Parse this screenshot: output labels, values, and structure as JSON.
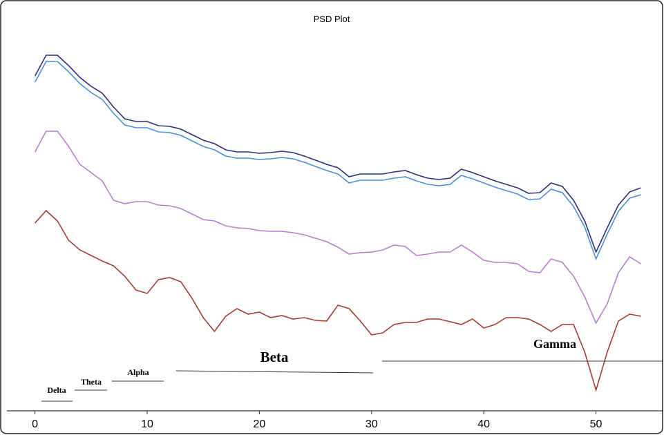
{
  "chart_data": {
    "type": "line",
    "title": "PSD Plot",
    "x": [
      0,
      1,
      2,
      3,
      4,
      5,
      6,
      7,
      8,
      9,
      10,
      11,
      12,
      13,
      14,
      15,
      16,
      17,
      18,
      19,
      20,
      21,
      22,
      23,
      24,
      25,
      26,
      27,
      28,
      29,
      30,
      31,
      32,
      33,
      34,
      35,
      36,
      37,
      38,
      39,
      40,
      41,
      42,
      43,
      44,
      45,
      46,
      47,
      48,
      49,
      50,
      51,
      52,
      53,
      54
    ],
    "series": [
      {
        "color": "#2b2f7a",
        "values": [
          485,
          515,
          515,
          500,
          483,
          470,
          460,
          440,
          423,
          419,
          419,
          413,
          412,
          408,
          400,
          392,
          387,
          378,
          375,
          375,
          373,
          374,
          376,
          374,
          369,
          363,
          357,
          352,
          339,
          343,
          343,
          343,
          346,
          348,
          342,
          337,
          335,
          337,
          350,
          345,
          339,
          333,
          328,
          323,
          315,
          316,
          330,
          325,
          305,
          275,
          230,
          265,
          298,
          317,
          323
        ]
      },
      {
        "color": "#4a8fd6",
        "values": [
          476,
          506,
          506,
          491,
          474,
          461,
          451,
          431,
          414,
          410,
          410,
          404,
          403,
          399,
          391,
          383,
          378,
          369,
          366,
          366,
          364,
          365,
          367,
          365,
          360,
          354,
          348,
          343,
          330,
          334,
          334,
          334,
          337,
          339,
          333,
          328,
          326,
          328,
          341,
          336,
          330,
          324,
          319,
          314,
          306,
          307,
          321,
          316,
          296,
          266,
          220,
          256,
          289,
          308,
          313
        ]
      },
      {
        "color": "#b77fd0",
        "values": [
          375,
          405,
          405,
          383,
          357,
          345,
          333,
          305,
          300,
          303,
          303,
          298,
          297,
          293,
          285,
          277,
          275,
          268,
          265,
          264,
          261,
          260,
          260,
          258,
          255,
          250,
          245,
          237,
          227,
          229,
          230,
          233,
          240,
          238,
          225,
          227,
          230,
          230,
          240,
          230,
          218,
          215,
          215,
          213,
          202,
          200,
          220,
          215,
          195,
          165,
          127,
          155,
          200,
          223,
          213
        ]
      },
      {
        "color": "#a83a32",
        "values": [
          272,
          290,
          275,
          247,
          233,
          225,
          217,
          210,
          195,
          175,
          170,
          190,
          193,
          187,
          163,
          135,
          115,
          137,
          148,
          140,
          143,
          135,
          138,
          133,
          135,
          131,
          130,
          153,
          148,
          130,
          110,
          113,
          125,
          128,
          128,
          133,
          133,
          129,
          125,
          133,
          120,
          125,
          135,
          135,
          133,
          125,
          115,
          125,
          125,
          85,
          30,
          85,
          130,
          140,
          137
        ]
      }
    ],
    "xlim": [
      -2.5,
      56
    ],
    "xticks": [
      0,
      10,
      20,
      30,
      40,
      50
    ],
    "ylim": [
      0,
      585
    ],
    "annotations": [
      "Delta",
      "Theta",
      "Alpha",
      "Beta",
      "Gamma"
    ]
  }
}
